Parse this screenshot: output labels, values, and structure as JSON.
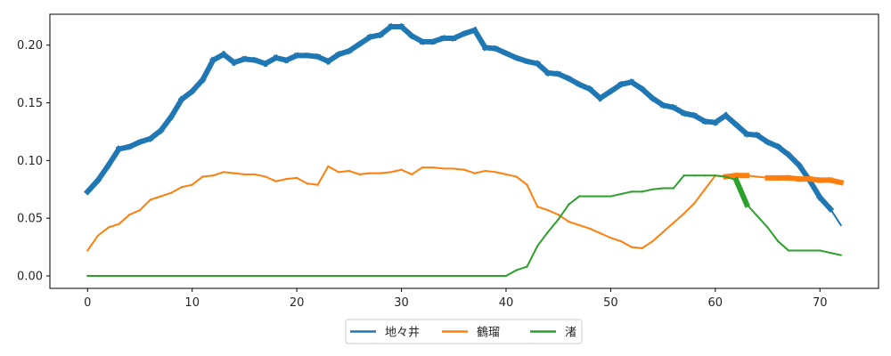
{
  "chart_data": {
    "type": "line",
    "title": "",
    "xlabel": "",
    "ylabel": "",
    "xlim": [
      -3.6,
      75.6
    ],
    "ylim": [
      -0.0108,
      0.2268
    ],
    "x_ticks": [
      0,
      10,
      20,
      30,
      40,
      50,
      60,
      70
    ],
    "x_tick_labels": [
      "0",
      "10",
      "20",
      "30",
      "40",
      "50",
      "60",
      "70"
    ],
    "y_ticks": [
      0.0,
      0.05,
      0.1,
      0.15,
      0.2
    ],
    "y_tick_labels": [
      "0.00",
      "0.05",
      "0.10",
      "0.15",
      "0.20"
    ],
    "grid": false,
    "legend_position": "bottom-center",
    "series": [
      {
        "name": "地々井",
        "color": "#1f77b4",
        "x": [
          0,
          1,
          2,
          3,
          4,
          5,
          6,
          7,
          8,
          9,
          10,
          11,
          12,
          13,
          14,
          15,
          16,
          17,
          18,
          19,
          20,
          21,
          22,
          23,
          24,
          25,
          26,
          27,
          28,
          29,
          30,
          31,
          32,
          33,
          34,
          35,
          36,
          37,
          38,
          39,
          40,
          41,
          42,
          43,
          44,
          45,
          46,
          47,
          48,
          49,
          50,
          51,
          52,
          53,
          54,
          55,
          56,
          57,
          58,
          59,
          60,
          61,
          62,
          63,
          64,
          65,
          66,
          67,
          68,
          69,
          70,
          71,
          72
        ],
        "values": [
          0.073,
          0.083,
          0.096,
          0.11,
          0.112,
          0.116,
          0.119,
          0.126,
          0.138,
          0.153,
          0.16,
          0.17,
          0.187,
          0.192,
          0.185,
          0.188,
          0.187,
          0.184,
          0.189,
          0.187,
          0.191,
          0.191,
          0.19,
          0.186,
          0.192,
          0.195,
          0.201,
          0.207,
          0.209,
          0.216,
          0.216,
          0.208,
          0.203,
          0.203,
          0.206,
          0.206,
          0.21,
          0.213,
          0.198,
          0.197,
          0.193,
          0.189,
          0.186,
          0.184,
          0.176,
          0.175,
          0.171,
          0.166,
          0.162,
          0.154,
          0.16,
          0.166,
          0.168,
          0.162,
          0.154,
          0.148,
          0.146,
          0.141,
          0.139,
          0.134,
          0.133,
          0.139,
          0.131,
          0.123,
          0.122,
          0.116,
          0.112,
          0.105,
          0.096,
          0.083,
          0.068,
          0.058,
          0.044
        ],
        "widths": [
          6,
          6,
          6,
          6,
          6,
          6,
          6,
          6,
          6,
          6,
          6,
          6,
          6,
          6,
          6,
          6,
          6,
          6,
          6,
          6,
          6,
          6,
          6,
          6,
          6,
          6,
          6,
          6,
          6,
          6,
          6,
          6,
          6,
          6,
          6,
          6,
          6,
          6,
          6,
          6,
          6,
          6,
          6,
          6,
          6,
          6,
          6,
          6,
          6,
          6,
          6,
          6,
          6,
          6,
          6,
          6,
          6,
          6,
          6,
          6,
          6,
          6,
          6,
          6,
          6,
          6,
          6,
          6,
          6,
          6,
          6,
          2
        ]
      },
      {
        "name": "鶴瑠",
        "color": "#ff7f0e",
        "x": [
          0,
          1,
          2,
          3,
          4,
          5,
          6,
          7,
          8,
          9,
          10,
          11,
          12,
          13,
          14,
          15,
          16,
          17,
          18,
          19,
          20,
          21,
          22,
          23,
          24,
          25,
          26,
          27,
          28,
          29,
          30,
          31,
          32,
          33,
          34,
          35,
          36,
          37,
          38,
          39,
          40,
          41,
          42,
          43,
          44,
          45,
          46,
          47,
          48,
          49,
          50,
          51,
          52,
          53,
          54,
          55,
          56,
          57,
          58,
          59,
          60,
          61,
          62,
          63,
          64,
          65,
          66,
          67,
          68,
          69,
          70,
          71,
          72
        ],
        "values": [
          0.022,
          0.035,
          0.042,
          0.045,
          0.053,
          0.057,
          0.066,
          0.069,
          0.072,
          0.077,
          0.079,
          0.086,
          0.087,
          0.09,
          0.089,
          0.088,
          0.088,
          0.086,
          0.082,
          0.084,
          0.085,
          0.08,
          0.079,
          0.095,
          0.09,
          0.091,
          0.088,
          0.089,
          0.089,
          0.09,
          0.092,
          0.088,
          0.094,
          0.094,
          0.093,
          0.093,
          0.092,
          0.089,
          0.091,
          0.09,
          0.088,
          0.086,
          0.079,
          0.06,
          0.057,
          0.053,
          0.047,
          0.044,
          0.041,
          0.037,
          0.033,
          0.03,
          0.025,
          0.024,
          0.03,
          0.038,
          0.046,
          0.054,
          0.063,
          0.075,
          0.087,
          0.086,
          0.087,
          0.087,
          0.086,
          0.085,
          0.085,
          0.085,
          0.084,
          0.084,
          0.083,
          0.083,
          0.081
        ],
        "widths": [
          2,
          2,
          2,
          2,
          2,
          2,
          2,
          2,
          2,
          2,
          2,
          2,
          2,
          2,
          2,
          2,
          2,
          2,
          2,
          2,
          2,
          2,
          2,
          2,
          2,
          2,
          2,
          2,
          2,
          2,
          2,
          2,
          2,
          2,
          2,
          2,
          2,
          2,
          2,
          2,
          2,
          2,
          2,
          2,
          2,
          2,
          2,
          2,
          2,
          2,
          2,
          2,
          2,
          2,
          2,
          2,
          2,
          2,
          2,
          2,
          2,
          6,
          6,
          2,
          2,
          6,
          6,
          6,
          6,
          6,
          6,
          6
        ]
      },
      {
        "name": "渚",
        "color": "#2ca02c",
        "x": [
          0,
          1,
          2,
          3,
          4,
          5,
          6,
          7,
          8,
          9,
          10,
          11,
          12,
          13,
          14,
          15,
          16,
          17,
          18,
          19,
          20,
          21,
          22,
          23,
          24,
          25,
          26,
          27,
          28,
          29,
          30,
          31,
          32,
          33,
          34,
          35,
          36,
          37,
          38,
          39,
          40,
          41,
          42,
          43,
          44,
          45,
          46,
          47,
          48,
          49,
          50,
          51,
          52,
          53,
          54,
          55,
          56,
          57,
          58,
          59,
          60,
          61,
          62,
          63,
          64,
          65,
          66,
          67,
          68,
          69,
          70,
          71,
          72
        ],
        "values": [
          0,
          0,
          0,
          0,
          0,
          0,
          0,
          0,
          0,
          0,
          0,
          0,
          0,
          0,
          0,
          0,
          0,
          0,
          0,
          0,
          0,
          0,
          0,
          0,
          0,
          0,
          0,
          0,
          0,
          0,
          0,
          0,
          0,
          0,
          0,
          0,
          0,
          0,
          0,
          0,
          0,
          0.005,
          0.008,
          0.026,
          0.038,
          0.049,
          0.062,
          0.069,
          0.069,
          0.069,
          0.069,
          0.071,
          0.073,
          0.073,
          0.075,
          0.076,
          0.076,
          0.087,
          0.087,
          0.087,
          0.087,
          0.086,
          0.083,
          0.062,
          0.052,
          0.042,
          0.03,
          0.022,
          0.022,
          0.022,
          0.022,
          0.02,
          0.018
        ],
        "widths": [
          2,
          2,
          2,
          2,
          2,
          2,
          2,
          2,
          2,
          2,
          2,
          2,
          2,
          2,
          2,
          2,
          2,
          2,
          2,
          2,
          2,
          2,
          2,
          2,
          2,
          2,
          2,
          2,
          2,
          2,
          2,
          2,
          2,
          2,
          2,
          2,
          2,
          2,
          2,
          2,
          2,
          2,
          2,
          2,
          2,
          2,
          2,
          2,
          2,
          2,
          2,
          2,
          2,
          2,
          2,
          2,
          2,
          2,
          2,
          2,
          2,
          2,
          6,
          2,
          2,
          2,
          2,
          2,
          2,
          2,
          2,
          2
        ]
      }
    ]
  }
}
